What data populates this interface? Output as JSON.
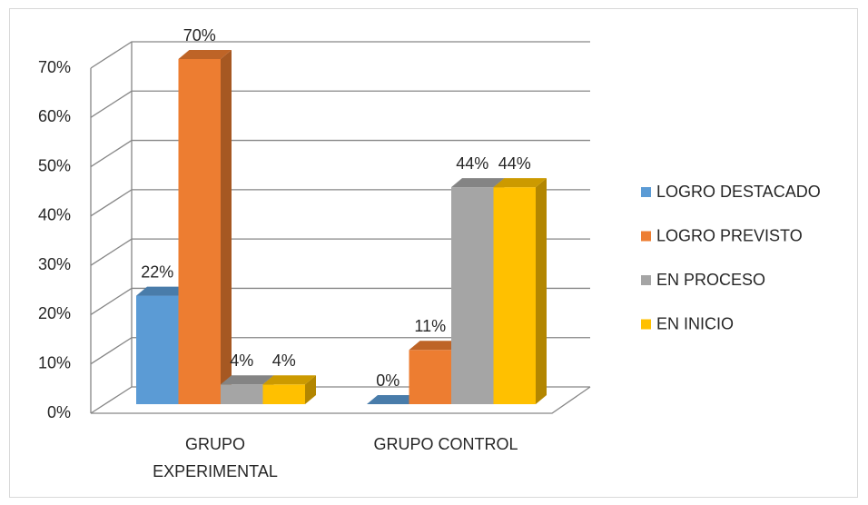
{
  "chart_data": {
    "type": "bar3d",
    "categories": [
      "GRUPO EXPERIMENTAL",
      "GRUPO CONTROL"
    ],
    "series": [
      {
        "name": "LOGRO DESTACADO",
        "color": "#5b9bd5",
        "values": [
          22,
          0
        ],
        "value_labels": [
          "22%",
          "0%"
        ]
      },
      {
        "name": "LOGRO PREVISTO",
        "color": "#ed7d31",
        "values": [
          70,
          11
        ],
        "value_labels": [
          "70%",
          "11%"
        ]
      },
      {
        "name": "EN PROCESO",
        "color": "#a5a5a5",
        "values": [
          4,
          44
        ],
        "value_labels": [
          "4%",
          "44%"
        ]
      },
      {
        "name": "EN INICIO",
        "color": "#ffc000",
        "values": [
          4,
          44
        ],
        "value_labels": [
          "4%",
          "44%"
        ]
      }
    ],
    "ylim": [
      0,
      70
    ],
    "yticks": [
      {
        "value": 0,
        "label": "0%"
      },
      {
        "value": 10,
        "label": "10%"
      },
      {
        "value": 20,
        "label": "20%"
      },
      {
        "value": 30,
        "label": "30%"
      },
      {
        "value": 40,
        "label": "40%"
      },
      {
        "value": 50,
        "label": "50%"
      },
      {
        "value": 60,
        "label": "60%"
      },
      {
        "value": 70,
        "label": "70%"
      }
    ],
    "grid": true,
    "legend": "right"
  }
}
